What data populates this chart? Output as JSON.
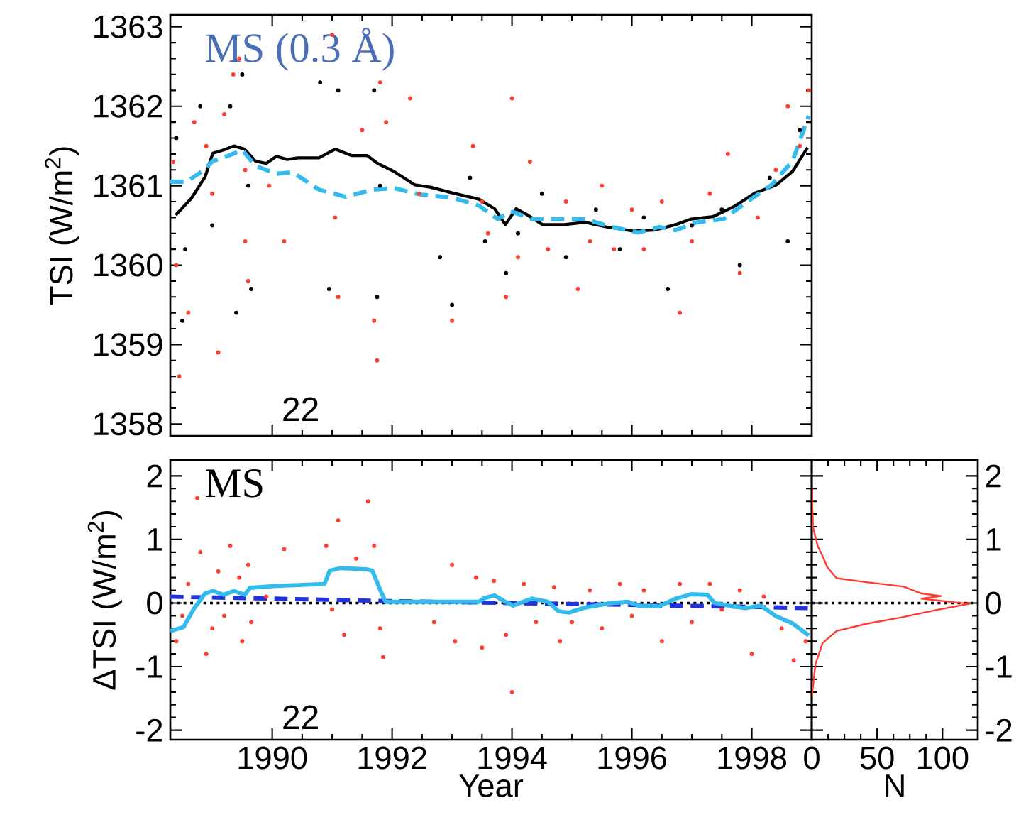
{
  "chart_data": [
    {
      "type": "line",
      "ylabel": "TSI (W/m$^{2}$)",
      "xlim": [
        1988.3,
        1999.0
      ],
      "ylim": [
        1357.85,
        1363.15
      ],
      "xticks": [
        1990,
        1992,
        1994,
        1996,
        1998
      ],
      "yticks": [
        1358,
        1359,
        1360,
        1361,
        1362,
        1363
      ],
      "tick_labels": "y",
      "annotations": [
        "MS (0.3 Å)",
        "22"
      ],
      "series": [
        {
          "type": "scatter",
          "color": "#ff3b30",
          "x": [
            1988.35,
            1988.4,
            1988.45,
            1988.6,
            1988.7,
            1988.9,
            1989.0,
            1989.1,
            1989.2,
            1989.35,
            1989.45,
            1989.55,
            1989.55,
            1989.6,
            1989.95,
            1990.2,
            1991.0,
            1991.05,
            1991.1,
            1991.5,
            1991.7,
            1991.75,
            1991.8,
            1991.9,
            1992.3,
            1992.45,
            1993.0,
            1993.35,
            1993.5,
            1993.6,
            1993.9,
            1994.0,
            1994.1,
            1994.3,
            1994.6,
            1994.9,
            1995.1,
            1995.3,
            1995.5,
            1995.7,
            1996.0,
            1996.2,
            1996.5,
            1996.8,
            1997.0,
            1997.3,
            1997.6,
            1997.8,
            1998.1,
            1998.4,
            1998.6,
            1998.8,
            1998.95
          ],
          "values": [
            1361.3,
            1360.0,
            1358.6,
            1359.4,
            1361.8,
            1361.5,
            1360.9,
            1358.9,
            1361.9,
            1362.4,
            1362.6,
            1361.2,
            1360.3,
            1359.8,
            1361.0,
            1360.3,
            1362.9,
            1360.6,
            1359.6,
            1361.7,
            1359.3,
            1358.8,
            1362.3,
            1361.8,
            1362.1,
            1360.9,
            1359.3,
            1361.5,
            1360.8,
            1360.4,
            1359.6,
            1362.1,
            1360.1,
            1361.3,
            1360.2,
            1360.8,
            1359.7,
            1360.3,
            1361.0,
            1360.2,
            1360.7,
            1360.2,
            1360.8,
            1359.4,
            1360.3,
            1360.9,
            1361.4,
            1359.9,
            1360.6,
            1361.2,
            1362.0,
            1361.5,
            1362.2
          ]
        },
        {
          "type": "scatter",
          "color": "#000000",
          "x": [
            1988.4,
            1988.5,
            1988.55,
            1988.8,
            1989.0,
            1989.3,
            1989.4,
            1989.5,
            1989.6,
            1989.65,
            1990.8,
            1990.95,
            1991.1,
            1991.7,
            1991.75,
            1991.8,
            1992.8,
            1993.0,
            1993.3,
            1993.55,
            1993.9,
            1994.1,
            1994.5,
            1994.9,
            1995.4,
            1995.8,
            1996.2,
            1996.6,
            1997.0,
            1997.5,
            1997.8,
            1998.3,
            1998.6,
            1998.8
          ],
          "values": [
            1361.6,
            1359.3,
            1360.2,
            1362.0,
            1360.5,
            1362.0,
            1359.4,
            1362.4,
            1361.0,
            1359.7,
            1362.3,
            1359.7,
            1362.2,
            1362.2,
            1359.6,
            1361.0,
            1360.1,
            1359.5,
            1361.1,
            1360.3,
            1359.9,
            1360.4,
            1360.9,
            1360.1,
            1360.7,
            1360.2,
            1360.6,
            1359.7,
            1360.5,
            1360.7,
            1360.0,
            1361.1,
            1360.3,
            1361.7
          ]
        },
        {
          "line_style": "solid",
          "color": "#000000",
          "x": [
            1988.39,
            1988.65,
            1988.88,
            1989.01,
            1989.19,
            1989.36,
            1989.54,
            1989.72,
            1989.9,
            1990.07,
            1990.25,
            1990.43,
            1990.78,
            1991.05,
            1991.32,
            1991.58,
            1991.76,
            1992.03,
            1992.38,
            1992.65,
            1993.0,
            1993.45,
            1993.71,
            1993.89,
            1994.07,
            1994.24,
            1994.51,
            1994.87,
            1995.22,
            1995.58,
            1996.02,
            1996.37,
            1996.73,
            1996.99,
            1997.35,
            1997.71,
            1998.06,
            1998.41,
            1998.68,
            1998.93
          ],
          "values": [
            1360.63,
            1360.84,
            1361.11,
            1361.41,
            1361.45,
            1361.5,
            1361.46,
            1361.31,
            1361.28,
            1361.37,
            1361.33,
            1361.35,
            1361.35,
            1361.46,
            1361.38,
            1361.38,
            1361.28,
            1361.18,
            1361.01,
            1360.98,
            1360.91,
            1360.83,
            1360.71,
            1360.51,
            1360.71,
            1360.64,
            1360.51,
            1360.51,
            1360.54,
            1360.48,
            1360.43,
            1360.44,
            1360.51,
            1360.58,
            1360.61,
            1360.74,
            1360.91,
            1361.01,
            1361.18,
            1361.48
          ]
        },
        {
          "line_style": "dashed",
          "color": "#33bbee",
          "x": [
            1988.3,
            1988.57,
            1988.83,
            1989.01,
            1989.28,
            1989.5,
            1989.72,
            1990.07,
            1990.34,
            1990.78,
            1991.23,
            1991.67,
            1992.03,
            1992.47,
            1993.0,
            1993.45,
            1993.76,
            1993.98,
            1994.33,
            1994.78,
            1995.22,
            1995.66,
            1996.11,
            1996.46,
            1996.73,
            1997.09,
            1997.53,
            1997.89,
            1998.33,
            1998.68,
            1998.95
          ],
          "values": [
            1361.05,
            1361.05,
            1361.18,
            1361.31,
            1361.38,
            1361.45,
            1361.25,
            1361.15,
            1361.17,
            1360.95,
            1360.86,
            1360.95,
            1360.97,
            1360.89,
            1360.85,
            1360.75,
            1360.58,
            1360.68,
            1360.58,
            1360.58,
            1360.58,
            1360.48,
            1360.41,
            1360.48,
            1360.44,
            1360.54,
            1360.58,
            1360.78,
            1361.01,
            1361.31,
            1361.88
          ]
        }
      ]
    },
    {
      "type": "scatter",
      "xlabel": "Year",
      "ylabel": "ΔTSI (W/m$^{2}$)",
      "xlim": [
        1988.3,
        1999.0
      ],
      "ylim": [
        -2.15,
        2.25
      ],
      "xticks": [
        1990,
        1992,
        1994,
        1996,
        1998
      ],
      "yticks": [
        -2,
        -1,
        0,
        1,
        2
      ],
      "annotations": [
        "MS",
        "22"
      ],
      "ref_lines": [
        {
          "axis": "y",
          "value": 0,
          "color": "#000000",
          "line_style": "dotted"
        }
      ],
      "series": [
        {
          "color": "#ff3b30",
          "x": [
            1988.4,
            1988.5,
            1988.6,
            1988.75,
            1988.8,
            1988.9,
            1989.0,
            1989.1,
            1989.2,
            1989.3,
            1989.45,
            1989.5,
            1989.6,
            1989.65,
            1989.9,
            1990.2,
            1990.9,
            1991.0,
            1991.1,
            1991.2,
            1991.4,
            1991.6,
            1991.7,
            1991.8,
            1991.85,
            1992.7,
            1993.0,
            1993.05,
            1993.4,
            1993.5,
            1993.7,
            1993.9,
            1994.0,
            1994.2,
            1994.4,
            1994.7,
            1994.8,
            1995.0,
            1995.3,
            1995.5,
            1995.8,
            1996.0,
            1996.2,
            1996.5,
            1996.8,
            1997.0,
            1997.3,
            1997.5,
            1997.8,
            1998.0,
            1998.2,
            1998.5,
            1998.7,
            1998.9
          ],
          "values": [
            -0.6,
            -0.2,
            0.3,
            1.65,
            0.8,
            -0.8,
            -0.4,
            0.5,
            -0.2,
            0.9,
            0.4,
            -0.6,
            0.6,
            -0.3,
            0.1,
            0.85,
            0.9,
            -0.1,
            1.3,
            -0.5,
            0.7,
            1.6,
            0.9,
            -0.4,
            -0.85,
            -0.3,
            0.6,
            -0.6,
            0.4,
            -0.7,
            0.35,
            -0.5,
            -1.4,
            0.3,
            -0.3,
            0.25,
            -0.6,
            -0.3,
            0.2,
            -0.4,
            0.3,
            -0.2,
            0.2,
            -0.6,
            0.3,
            -0.3,
            0.3,
            -0.1,
            0.2,
            -0.8,
            0.1,
            -0.4,
            -0.9,
            -0.6
          ]
        },
        {
          "type": "line",
          "line_style": "dashed",
          "color": "#2233dd",
          "x": [
            1988.3,
            1990,
            1992,
            1994,
            1996,
            1998,
            1998.95
          ],
          "values": [
            0.1,
            0.07,
            0.03,
            0.0,
            -0.03,
            -0.06,
            -0.08
          ]
        },
        {
          "type": "line",
          "line_style": "solid",
          "color": "#33bbee",
          "x": [
            1988.3,
            1988.52,
            1988.7,
            1988.88,
            1989.01,
            1989.19,
            1989.36,
            1989.54,
            1989.63,
            1990.07,
            1990.87,
            1990.96,
            1991.14,
            1991.58,
            1991.67,
            1991.8,
            1991.89,
            1992.03,
            1993.45,
            1993.54,
            1993.71,
            1993.89,
            1994.02,
            1994.33,
            1994.6,
            1994.78,
            1994.95,
            1995.22,
            1995.66,
            1995.93,
            1996.11,
            1996.46,
            1996.73,
            1996.99,
            1997.26,
            1997.38,
            1997.62,
            1997.89,
            1998.15,
            1998.41,
            1998.68,
            1998.95
          ],
          "values": [
            -0.44,
            -0.38,
            -0.08,
            0.15,
            0.19,
            0.13,
            0.19,
            0.13,
            0.24,
            0.27,
            0.3,
            0.51,
            0.55,
            0.53,
            0.51,
            0.21,
            0.02,
            0.02,
            0.02,
            0.08,
            0.12,
            0.02,
            -0.04,
            0.07,
            0.02,
            -0.13,
            -0.15,
            -0.07,
            0,
            0.02,
            -0.04,
            -0.05,
            0.07,
            0.14,
            0.13,
            0,
            -0.04,
            -0.08,
            -0.04,
            -0.21,
            -0.32,
            -0.51
          ]
        }
      ]
    },
    {
      "type": "line",
      "xlabel": "N",
      "xlim": [
        0,
        127
      ],
      "ylim": [
        -2.15,
        2.25
      ],
      "xticks": [
        0,
        50,
        100
      ],
      "yticks": [
        -2,
        -1,
        0,
        1,
        2
      ],
      "ref_lines": [
        {
          "axis": "y",
          "value": 0,
          "color": "#000000",
          "line_style": "dotted"
        }
      ],
      "series": [
        {
          "line_style": "solid",
          "color": "#ff3b30",
          "x": [
            0,
            1,
            4.7,
            8.3,
            12,
            19,
            41,
            70,
            84,
            99,
            84,
            110,
            121,
            95,
            70,
            41,
            19,
            8.3,
            2.9,
            0
          ],
          "values": [
            1.81,
            1.19,
            0.89,
            0.74,
            0.56,
            0.39,
            0.33,
            0.26,
            0.15,
            0.11,
            0.07,
            0.01,
            -0.01,
            -0.11,
            -0.22,
            -0.33,
            -0.44,
            -0.63,
            -0.96,
            -1.48
          ]
        }
      ]
    }
  ]
}
